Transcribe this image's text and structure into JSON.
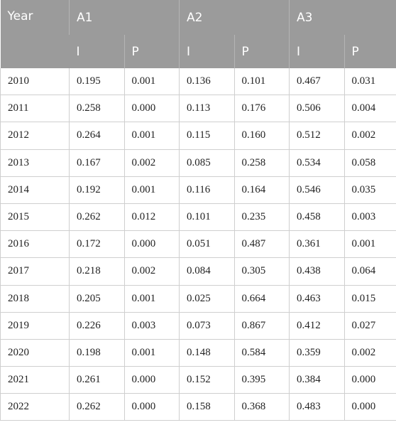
{
  "table": {
    "year_header": "Year",
    "groups": [
      "A1",
      "A2",
      "A3"
    ],
    "subheaders": [
      "I",
      "P",
      "I",
      "P",
      "I",
      "P"
    ],
    "rows": [
      {
        "year": "2010",
        "values": [
          "0.195",
          "0.001",
          "0.136",
          "0.101",
          "0.467",
          "0.031"
        ]
      },
      {
        "year": "2011",
        "values": [
          "0.258",
          "0.000",
          "0.113",
          "0.176",
          "0.506",
          "0.004"
        ]
      },
      {
        "year": "2012",
        "values": [
          "0.264",
          "0.001",
          "0.115",
          "0.160",
          "0.512",
          "0.002"
        ]
      },
      {
        "year": "2013",
        "values": [
          "0.167",
          "0.002",
          "0.085",
          "0.258",
          "0.534",
          "0.058"
        ]
      },
      {
        "year": "2014",
        "values": [
          "0.192",
          "0.001",
          "0.116",
          "0.164",
          "0.546",
          "0.035"
        ]
      },
      {
        "year": "2015",
        "values": [
          "0.262",
          "0.012",
          "0.101",
          "0.235",
          "0.458",
          "0.003"
        ]
      },
      {
        "year": "2016",
        "values": [
          "0.172",
          "0.000",
          "0.051",
          "0.487",
          "0.361",
          "0.001"
        ]
      },
      {
        "year": "2017",
        "values": [
          "0.218",
          "0.002",
          "0.084",
          "0.305",
          "0.438",
          "0.064"
        ]
      },
      {
        "year": "2018",
        "values": [
          "0.205",
          "0.001",
          "0.025",
          "0.664",
          "0.463",
          "0.015"
        ]
      },
      {
        "year": "2019",
        "values": [
          "0.226",
          "0.003",
          "0.073",
          "0.867",
          "0.412",
          "0.027"
        ]
      },
      {
        "year": "2020",
        "values": [
          "0.198",
          "0.001",
          "0.148",
          "0.584",
          "0.359",
          "0.002"
        ]
      },
      {
        "year": "2021",
        "values": [
          "0.261",
          "0.000",
          "0.152",
          "0.395",
          "0.384",
          "0.000"
        ]
      },
      {
        "year": "2022",
        "values": [
          "0.262",
          "0.000",
          "0.158",
          "0.368",
          "0.483",
          "0.000"
        ]
      }
    ]
  },
  "colors": {
    "header_background": "#9b9b9b",
    "header_text": "#ffffff",
    "grid_line": "#cfcfcf"
  }
}
